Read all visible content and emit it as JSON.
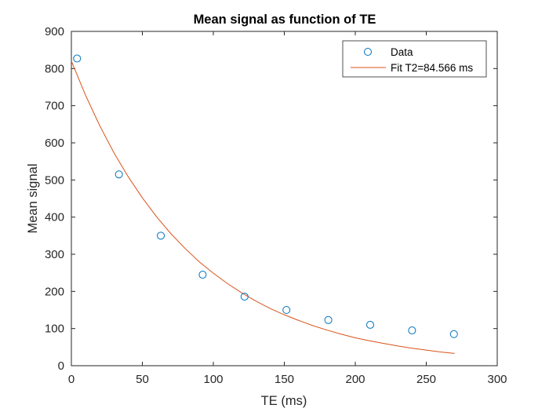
{
  "chart_data": {
    "type": "scatter",
    "title": "Mean signal as function of TE",
    "xlabel": "TE (ms)",
    "ylabel": "Mean signal",
    "xlim": [
      0,
      300
    ],
    "ylim": [
      0,
      900
    ],
    "xticks": [
      "0",
      "50",
      "100",
      "150",
      "200",
      "250",
      "300"
    ],
    "yticks": [
      "0",
      "100",
      "200",
      "300",
      "400",
      "500",
      "600",
      "700",
      "800",
      "900"
    ],
    "grid": false,
    "legend_position": "top-right",
    "series": [
      {
        "name": "Data",
        "kind": "markers",
        "marker": "circle",
        "color": "#0072BD",
        "x": [
          4,
          33.5,
          63,
          92.5,
          122,
          151.5,
          181,
          210.5,
          240,
          269.5
        ],
        "y": [
          827,
          515,
          350,
          245,
          186,
          150,
          123,
          110,
          95,
          85
        ]
      },
      {
        "name": "Fit T2=84.566 ms",
        "kind": "line",
        "color": "#D95319",
        "x": [
          0,
          10,
          20,
          30,
          40,
          50,
          60,
          70,
          80,
          90,
          100,
          110,
          120,
          130,
          140,
          150,
          160,
          170,
          180,
          190,
          200,
          210,
          220,
          230,
          240,
          250,
          260,
          270
        ],
        "y": [
          820,
          728,
          646,
          573,
          509,
          452,
          401,
          356,
          316,
          280,
          249,
          221,
          196,
          174,
          154,
          137,
          122,
          108,
          96,
          85,
          75,
          67,
          60,
          53,
          47,
          42,
          37,
          33
        ]
      }
    ]
  }
}
